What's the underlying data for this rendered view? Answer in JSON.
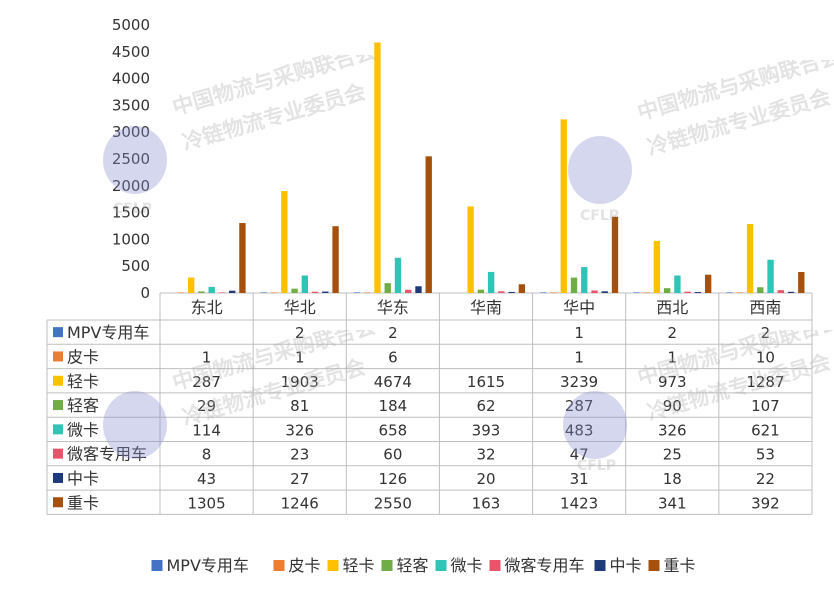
{
  "watermark": {
    "line1": "中国物流与采购联合会",
    "line2": "冷链物流专业委员会",
    "logo": "CFLP"
  },
  "chart_data": {
    "type": "bar",
    "title": "",
    "xlabel": "",
    "ylabel": "",
    "ylim": [
      0,
      5000
    ],
    "yticks": [
      0,
      500,
      1000,
      1500,
      2000,
      2500,
      3000,
      3500,
      4000,
      4500,
      5000
    ],
    "categories": [
      "东北",
      "华北",
      "华东",
      "华南",
      "华中",
      "西北",
      "西南"
    ],
    "legend_position": "bottom",
    "series": [
      {
        "name": "MPV专用车",
        "color": "#4472C4",
        "values": [
          null,
          2,
          2,
          null,
          1,
          2,
          2
        ]
      },
      {
        "name": "皮卡",
        "color": "#ED7D31",
        "values": [
          1,
          1,
          6,
          null,
          1,
          1,
          10
        ]
      },
      {
        "name": "轻卡",
        "color": "#FFC000",
        "values": [
          287,
          1903,
          4674,
          1615,
          3239,
          973,
          1287
        ]
      },
      {
        "name": "轻客",
        "color": "#70AD47",
        "values": [
          29,
          81,
          184,
          62,
          287,
          90,
          107
        ]
      },
      {
        "name": "微卡",
        "color": "#2EC4B6",
        "values": [
          114,
          326,
          658,
          393,
          483,
          326,
          621
        ]
      },
      {
        "name": "微客专用车",
        "color": "#E9546B",
        "values": [
          8,
          23,
          60,
          32,
          47,
          25,
          53
        ]
      },
      {
        "name": "中卡",
        "color": "#1F3A7A",
        "values": [
          43,
          27,
          126,
          20,
          31,
          18,
          22
        ]
      },
      {
        "name": "重卡",
        "color": "#A5500C",
        "values": [
          1305,
          1246,
          2550,
          163,
          1423,
          341,
          392
        ]
      }
    ]
  }
}
